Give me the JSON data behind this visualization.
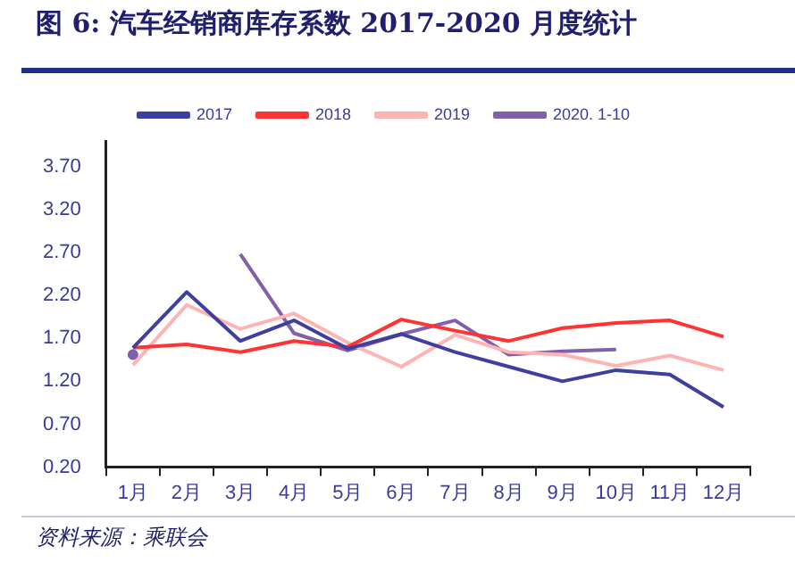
{
  "chart_data": {
    "type": "line",
    "title": "图 6:  汽车经销商库存系数 2017-2020 月度统计",
    "categories": [
      "1月",
      "2月",
      "3月",
      "4月",
      "5月",
      "6月",
      "7月",
      "8月",
      "9月",
      "10月",
      "11月",
      "12月"
    ],
    "series": [
      {
        "name": "2017",
        "color": "#3f3f9f",
        "values": [
          1.59,
          2.24,
          1.67,
          1.91,
          1.58,
          1.75,
          1.54,
          1.37,
          1.2,
          1.33,
          1.28,
          0.9
        ]
      },
      {
        "name": "2018",
        "color": "#ff3333",
        "values": [
          1.59,
          1.63,
          1.54,
          1.67,
          1.6,
          1.92,
          1.79,
          1.67,
          1.82,
          1.88,
          1.91,
          1.72
        ]
      },
      {
        "name": "2019",
        "color": "#ffb3b3",
        "values": [
          1.39,
          2.09,
          1.81,
          1.99,
          1.65,
          1.37,
          1.74,
          1.54,
          1.51,
          1.38,
          1.5,
          1.33
        ]
      },
      {
        "name": "2020. 1-10",
        "color": "#8060a8",
        "values": [
          1.51,
          null,
          2.68,
          1.76,
          1.56,
          1.75,
          1.91,
          1.51,
          1.55,
          1.57,
          null,
          null
        ]
      }
    ],
    "ylim": [
      0.2,
      4.0
    ],
    "yticks": [
      {
        "value": 0.2,
        "label": "0.20"
      },
      {
        "value": 0.7,
        "label": "0.70"
      },
      {
        "value": 1.2,
        "label": "1.20"
      },
      {
        "value": 1.7,
        "label": "1.70"
      },
      {
        "value": 2.2,
        "label": "2.20"
      },
      {
        "value": 2.7,
        "label": "2.70"
      },
      {
        "value": 3.2,
        "label": "3.20"
      },
      {
        "value": 3.7,
        "label": "3.70"
      }
    ],
    "grid": false,
    "legend": "top",
    "marker": "none",
    "line_style": "solid",
    "annotations": [
      "资料来源：乘联会"
    ]
  }
}
